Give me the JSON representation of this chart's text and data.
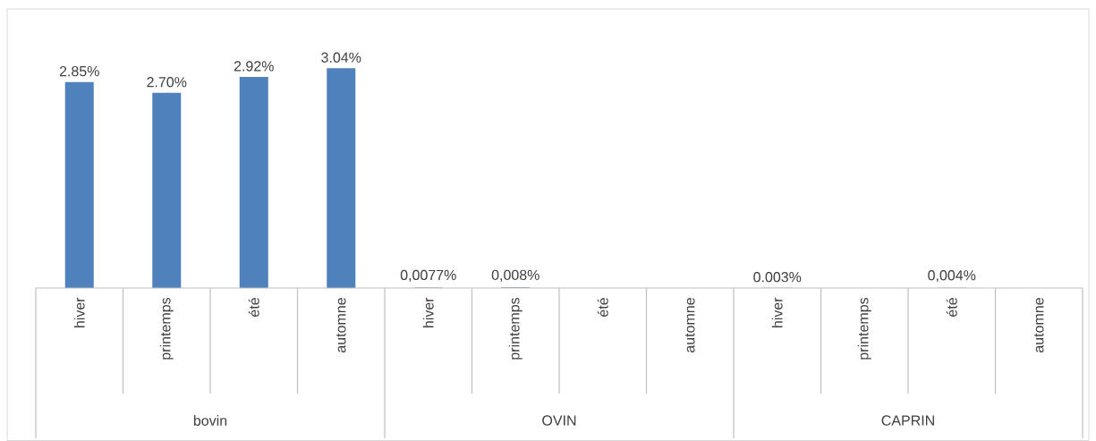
{
  "chart_data": {
    "type": "bar",
    "categories": [
      "hiver",
      "printemps",
      "été",
      "automne",
      "hiver",
      "printemps",
      "été",
      "automne",
      "hiver",
      "printemps",
      "été",
      "automne"
    ],
    "values": [
      2.85,
      2.7,
      2.92,
      3.04,
      0.0077,
      0.008,
      null,
      null,
      0.003,
      null,
      0.004,
      null
    ],
    "value_labels": [
      "2.85%",
      "2.70%",
      "2.92%",
      "3.04%",
      "0,0077%",
      "0,008%",
      null,
      null,
      "0.003%",
      null,
      "0,004%",
      null
    ],
    "color": "#4f81bd",
    "annotations": [
      "bovin",
      "OVIN",
      "CAPRIN"
    ]
  }
}
